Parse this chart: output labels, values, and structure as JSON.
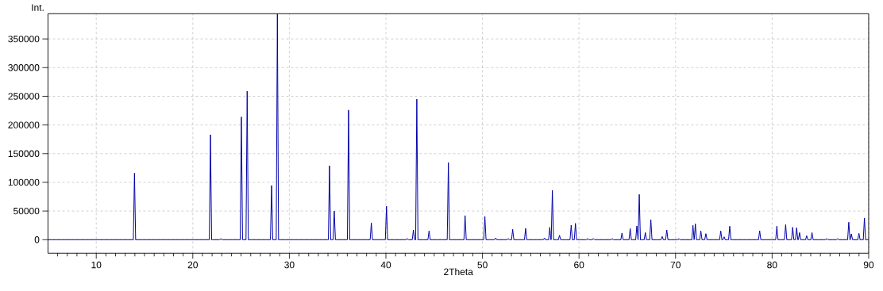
{
  "chart_data": {
    "type": "line",
    "xlabel": "2Theta",
    "ylabel": "Int.",
    "xlim": [
      5,
      90
    ],
    "ylim": [
      -23500,
      394000
    ],
    "xticks": [
      {
        "value": 6,
        "label": null
      },
      {
        "value": 7,
        "label": null
      },
      {
        "value": 8,
        "label": null
      },
      {
        "value": 9,
        "label": null
      },
      10,
      {
        "value": 11,
        "label": null
      },
      {
        "value": 12,
        "label": null
      },
      {
        "value": 13,
        "label": null
      },
      {
        "value": 14,
        "label": null
      },
      {
        "value": 15,
        "label": null
      },
      {
        "value": 16,
        "label": null
      },
      {
        "value": 17,
        "label": null
      },
      {
        "value": 18,
        "label": null
      },
      {
        "value": 19,
        "label": null
      },
      20,
      {
        "value": 21,
        "label": null
      },
      {
        "value": 22,
        "label": null
      },
      {
        "value": 23,
        "label": null
      },
      {
        "value": 24,
        "label": null
      },
      {
        "value": 25,
        "label": null
      },
      {
        "value": 26,
        "label": null
      },
      {
        "value": 27,
        "label": null
      },
      {
        "value": 28,
        "label": null
      },
      {
        "value": 29,
        "label": null
      },
      30,
      {
        "value": 31,
        "label": null
      },
      {
        "value": 32,
        "label": null
      },
      {
        "value": 33,
        "label": null
      },
      {
        "value": 34,
        "label": null
      },
      {
        "value": 35,
        "label": null
      },
      {
        "value": 36,
        "label": null
      },
      {
        "value": 37,
        "label": null
      },
      {
        "value": 38,
        "label": null
      },
      {
        "value": 39,
        "label": null
      },
      40,
      {
        "value": 41,
        "label": null
      },
      {
        "value": 42,
        "label": null
      },
      {
        "value": 43,
        "label": null
      },
      {
        "value": 44,
        "label": null
      },
      {
        "value": 45,
        "label": null
      },
      {
        "value": 46,
        "label": null
      },
      {
        "value": 47,
        "label": null
      },
      {
        "value": 48,
        "label": null
      },
      {
        "value": 49,
        "label": null
      },
      50,
      {
        "value": 51,
        "label": null
      },
      {
        "value": 52,
        "label": null
      },
      {
        "value": 53,
        "label": null
      },
      {
        "value": 54,
        "label": null
      },
      {
        "value": 55,
        "label": null
      },
      {
        "value": 56,
        "label": null
      },
      {
        "value": 57,
        "label": null
      },
      {
        "value": 58,
        "label": null
      },
      {
        "value": 59,
        "label": null
      },
      60,
      {
        "value": 61,
        "label": null
      },
      {
        "value": 62,
        "label": null
      },
      {
        "value": 63,
        "label": null
      },
      {
        "value": 64,
        "label": null
      },
      {
        "value": 65,
        "label": null
      },
      {
        "value": 66,
        "label": null
      },
      {
        "value": 67,
        "label": null
      },
      {
        "value": 68,
        "label": null
      },
      {
        "value": 69,
        "label": null
      },
      70,
      {
        "value": 71,
        "label": null
      },
      {
        "value": 72,
        "label": null
      },
      {
        "value": 73,
        "label": null
      },
      {
        "value": 74,
        "label": null
      },
      {
        "value": 75,
        "label": null
      },
      {
        "value": 76,
        "label": null
      },
      {
        "value": 77,
        "label": null
      },
      {
        "value": 78,
        "label": null
      },
      {
        "value": 79,
        "label": null
      },
      80,
      {
        "value": 81,
        "label": null
      },
      {
        "value": 82,
        "label": null
      },
      {
        "value": 83,
        "label": null
      },
      {
        "value": 84,
        "label": null
      },
      {
        "value": 85,
        "label": null
      },
      {
        "value": 86,
        "label": null
      },
      {
        "value": 87,
        "label": null
      },
      {
        "value": 88,
        "label": null
      },
      {
        "value": 89,
        "label": null
      },
      90
    ],
    "yticks": [
      0,
      50000,
      100000,
      150000,
      200000,
      250000,
      300000,
      350000
    ],
    "grid": true,
    "marker": "none",
    "line_style": "solid",
    "series": [
      {
        "color": "#0000a8",
        "x": [
          5,
          13.84,
          13.96,
          14.08,
          21.71,
          21.83,
          21.95,
          22.78,
          22.9,
          23.02,
          24.91,
          25.03,
          25.15,
          25.51,
          25.63,
          25.75,
          28.04,
          28.16,
          28.28,
          28.64,
          28.76,
          28.88,
          34.04,
          34.16,
          34.28,
          34.53,
          34.65,
          34.77,
          36.01,
          36.13,
          36.25,
          38.37,
          38.49,
          38.61,
          39.94,
          40.06,
          40.18,
          42.08,
          42.2,
          42.32,
          42.73,
          42.85,
          42.97,
          43.08,
          43.2,
          43.32,
          44.35,
          44.47,
          44.59,
          46.35,
          46.47,
          46.59,
          48.08,
          48.2,
          48.32,
          50.13,
          50.25,
          50.37,
          51.25,
          51.37,
          51.49,
          52.54,
          52.66,
          52.78,
          53.01,
          53.13,
          53.25,
          54.35,
          54.47,
          54.59,
          56.3,
          56.42,
          56.54,
          56.85,
          56.97,
          57.09,
          57.12,
          57.24,
          57.36,
          57.86,
          57.98,
          58.1,
          59.07,
          59.19,
          59.31,
          59.51,
          59.63,
          59.75,
          60.77,
          60.89,
          61.01,
          61.37,
          61.49,
          61.61,
          63.32,
          63.44,
          63.56,
          64.33,
          64.45,
          64.57,
          65.18,
          65.3,
          65.42,
          65.87,
          65.99,
          66.11,
          66.12,
          66.24,
          66.36,
          66.75,
          66.87,
          66.99,
          67.32,
          67.44,
          67.56,
          68.5,
          68.62,
          68.74,
          68.97,
          69.09,
          69.21,
          70.23,
          70.35,
          70.47,
          71.68,
          71.8,
          71.92,
          71.93,
          72.05,
          72.17,
          72.5,
          72.62,
          72.74,
          73.02,
          73.14,
          73.26,
          74.56,
          74.68,
          74.8,
          74.91,
          75.03,
          75.15,
          75.49,
          75.61,
          75.73,
          78.59,
          78.71,
          78.83,
          80.37,
          80.49,
          80.61,
          81.28,
          81.4,
          81.52,
          82.01,
          82.13,
          82.25,
          82.42,
          82.54,
          82.66,
          82.72,
          82.84,
          82.96,
          83.46,
          83.58,
          83.7,
          84.01,
          84.13,
          84.25,
          85.54,
          85.66,
          85.78,
          86.67,
          86.79,
          86.91,
          87.82,
          87.94,
          88.06,
          88.09,
          88.21,
          88.33,
          88.87,
          88.99,
          89.11,
          89.44,
          89.56,
          89.68,
          90
        ],
        "values": [
          0,
          0,
          116000,
          0,
          0,
          183000,
          0,
          0,
          2000,
          0,
          0,
          214000,
          0,
          0,
          259000,
          0,
          0,
          94500,
          0,
          0,
          394000,
          0,
          0,
          129000,
          0,
          0,
          50000,
          0,
          0,
          226000,
          0,
          0,
          29500,
          0,
          0,
          58500,
          0,
          0,
          2000,
          0,
          0,
          17000,
          0,
          0,
          245000,
          0,
          0,
          15600,
          0,
          0,
          134600,
          0,
          0,
          42000,
          0,
          0,
          40500,
          0,
          0,
          3000,
          0,
          0,
          2000,
          0,
          0,
          18000,
          0,
          0,
          19800,
          0,
          0,
          3000,
          0,
          0,
          21600,
          0,
          0,
          86200,
          0,
          0,
          7700,
          0,
          0,
          25300,
          0,
          0,
          28500,
          0,
          0,
          2000,
          0,
          0,
          2000,
          0,
          0,
          2000,
          0,
          0,
          11500,
          0,
          0,
          19400,
          0,
          0,
          24000,
          0,
          0,
          78900,
          0,
          0,
          12400,
          0,
          0,
          35000,
          0,
          0,
          5500,
          0,
          0,
          17000,
          0,
          0,
          2000,
          0,
          0,
          25000,
          0,
          0,
          27700,
          0,
          0,
          15200,
          0,
          0,
          10500,
          0,
          0,
          15200,
          0,
          0,
          5000,
          0,
          0,
          23500,
          0,
          0,
          15600,
          0,
          0,
          23500,
          0,
          0,
          26300,
          0,
          0,
          21600,
          0,
          0,
          20800,
          0,
          0,
          12400,
          0,
          0,
          6900,
          0,
          0,
          12400,
          0,
          0,
          2000,
          0,
          0,
          2000,
          0,
          0,
          30400,
          0,
          0,
          10000,
          0,
          0,
          11000,
          0,
          0,
          37800,
          0,
          0
        ]
      }
    ]
  }
}
